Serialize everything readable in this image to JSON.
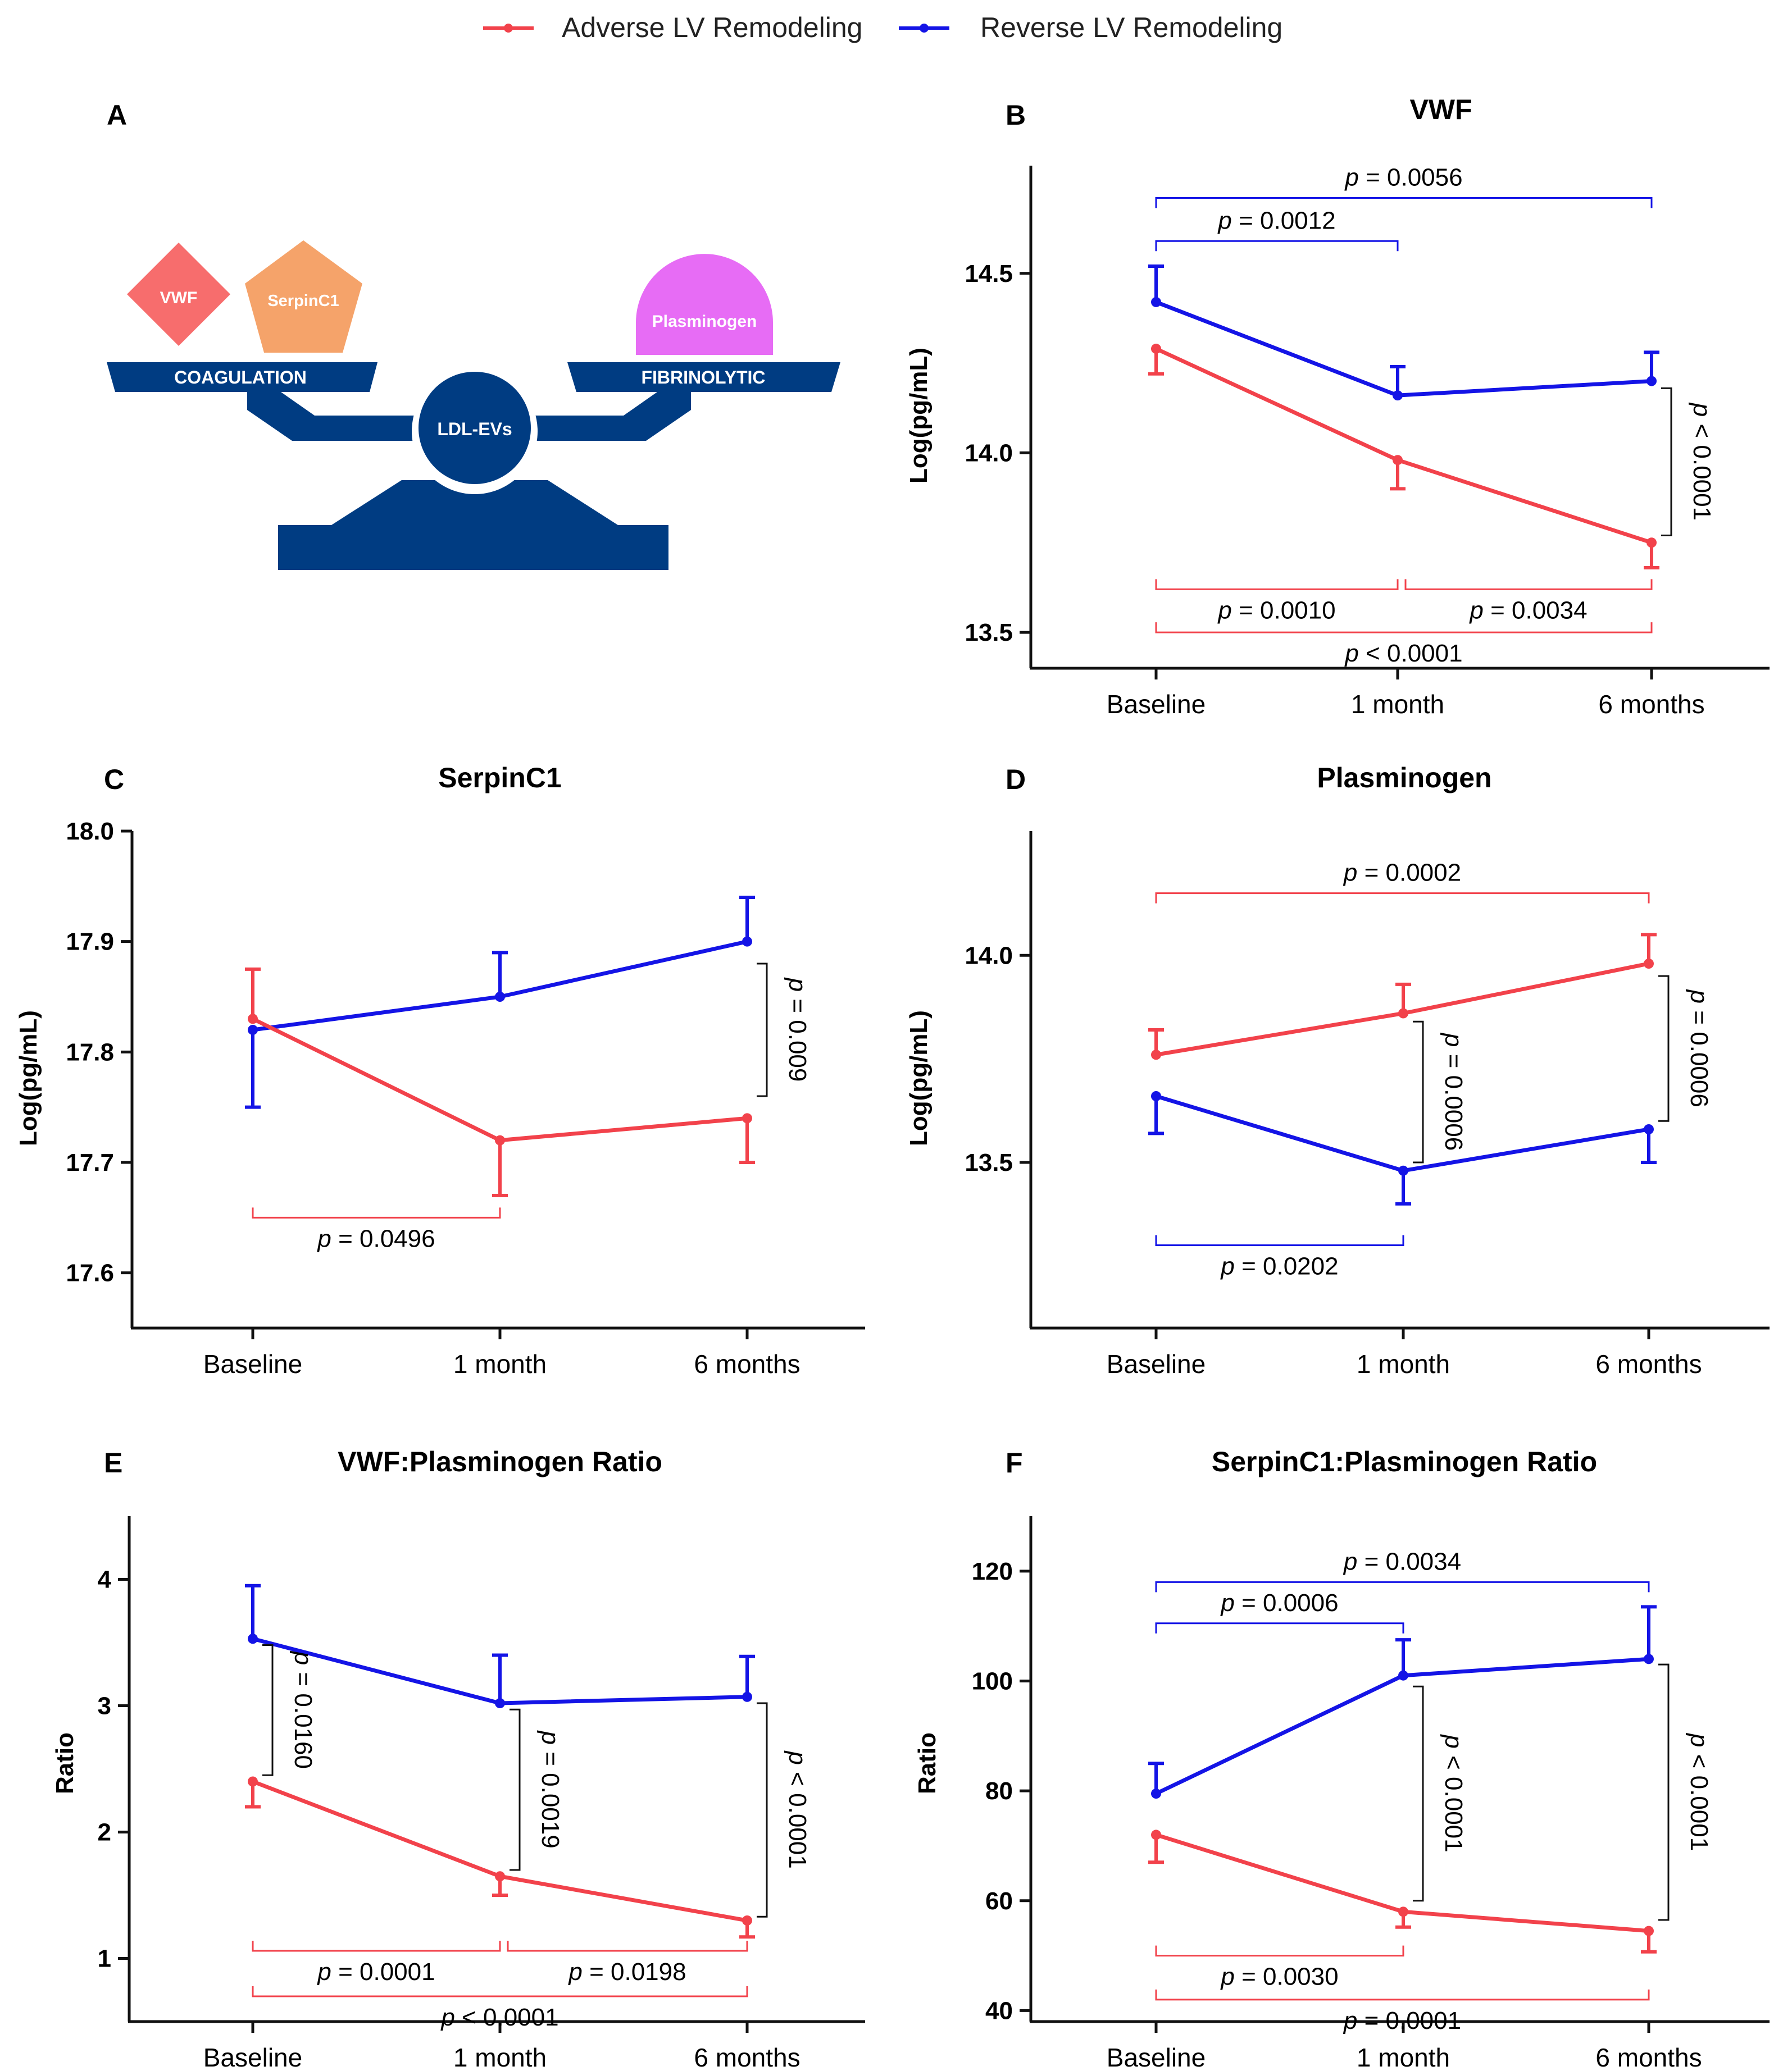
{
  "legend": {
    "adverse": "Adverse LV Remodeling",
    "reverse": "Reverse LV Remodeling",
    "adverse_color": "#f2424b",
    "reverse_color": "#1414e6"
  },
  "panel_a": {
    "letter": "A",
    "vwf_label": "VWF",
    "serpin_label": "SerpinC1",
    "plasminogen_label": "Plasminogen",
    "coag_label": "COAGULATION",
    "fibrino_label": "FIBRINOLYTIC",
    "hub_label": "LDL-EVs",
    "colors": {
      "vwf": "#f76d6d",
      "serpin": "#f5a36a",
      "plasminogen": "#e76cf5",
      "scale": "#003c82"
    }
  },
  "chart_data": [
    {
      "id": "B",
      "type": "line",
      "title": "VWF",
      "ylabel": "Log(pg/mL)",
      "categories": [
        "Baseline",
        "1 month",
        "6 months"
      ],
      "ylim": [
        13.4,
        14.8
      ],
      "yticks": [
        "13.5",
        "14.0",
        "14.5"
      ],
      "ytick_values": [
        13.5,
        14.0,
        14.5
      ],
      "series": [
        {
          "name": "Reverse LV Remodeling",
          "color": "#1414e6",
          "values": [
            14.42,
            14.16,
            14.2
          ],
          "err": [
            0.1,
            0.08,
            0.08
          ]
        },
        {
          "name": "Adverse LV Remodeling",
          "color": "#f2424b",
          "values": [
            14.29,
            13.98,
            13.75
          ],
          "err": [
            0.07,
            0.08,
            0.07
          ]
        }
      ],
      "brackets": [
        {
          "text": "p = 0.0056",
          "kind": "h",
          "series": 0,
          "from": 0,
          "to": 2,
          "y": 14.71,
          "side": "above"
        },
        {
          "text": "p = 0.0012",
          "kind": "h",
          "series": 0,
          "from": 0,
          "to": 1,
          "y": 14.59,
          "side": "above"
        },
        {
          "text": "p < 0.0001",
          "kind": "v",
          "at": 2,
          "y1": 14.18,
          "y2": 13.77
        },
        {
          "text": "p = 0.0010",
          "kind": "h",
          "series": 1,
          "from": 0,
          "to": 1,
          "y": 13.62,
          "side": "below"
        },
        {
          "text": "p = 0.0034",
          "kind": "h",
          "series": 1,
          "from": 1,
          "to": 2,
          "y": 13.62,
          "side": "below"
        },
        {
          "text": "p < 0.0001",
          "kind": "h",
          "series": 1,
          "from": 0,
          "to": 2,
          "y": 13.5,
          "side": "below"
        }
      ]
    },
    {
      "id": "C",
      "type": "line",
      "title": "SerpinC1",
      "ylabel": "Log(pg/mL)",
      "categories": [
        "Baseline",
        "1 month",
        "6 months"
      ],
      "ylim": [
        17.55,
        18.0
      ],
      "yticks": [
        "17.6",
        "17.7",
        "17.8",
        "17.9",
        "18.0"
      ],
      "ytick_values": [
        17.6,
        17.7,
        17.8,
        17.9,
        18.0
      ],
      "series": [
        {
          "name": "Reverse LV Remodeling",
          "color": "#1414e6",
          "values": [
            17.82,
            17.85,
            17.9
          ],
          "err": [
            0.07,
            0.04,
            0.04
          ]
        },
        {
          "name": "Adverse LV Remodeling",
          "color": "#f2424b",
          "values": [
            17.83,
            17.72,
            17.74
          ],
          "err": [
            0.045,
            0.05,
            0.04
          ]
        }
      ],
      "brackets": [
        {
          "text": "p = 0.009",
          "kind": "v",
          "at": 2,
          "y1": 17.88,
          "y2": 17.76
        },
        {
          "text": "p = 0.0496",
          "kind": "h",
          "series": 1,
          "from": 0,
          "to": 1,
          "y": 17.65,
          "side": "below"
        }
      ]
    },
    {
      "id": "D",
      "type": "line",
      "title": "Plasminogen",
      "ylabel": "Log(pg/mL)",
      "categories": [
        "Baseline",
        "1 month",
        "6 months"
      ],
      "ylim": [
        13.1,
        14.3
      ],
      "yticks": [
        "13.5",
        "14.0"
      ],
      "ytick_values": [
        13.5,
        14.0
      ],
      "series": [
        {
          "name": "Adverse LV Remodeling",
          "color": "#f2424b",
          "values": [
            13.76,
            13.86,
            13.98
          ],
          "err": [
            0.06,
            0.07,
            0.07
          ]
        },
        {
          "name": "Reverse LV Remodeling",
          "color": "#1414e6",
          "values": [
            13.66,
            13.48,
            13.58
          ],
          "err": [
            0.09,
            0.08,
            0.08
          ]
        }
      ],
      "brackets": [
        {
          "text": "p = 0.0002",
          "kind": "h",
          "series": 0,
          "from": 0,
          "to": 2,
          "y": 14.15,
          "side": "above"
        },
        {
          "text": "p = 0.0006",
          "kind": "v",
          "at": 1,
          "y1": 13.84,
          "y2": 13.5
        },
        {
          "text": "p = 0.0006",
          "kind": "v",
          "at": 2,
          "y1": 13.95,
          "y2": 13.6
        },
        {
          "text": "p = 0.0202",
          "kind": "h",
          "series": 1,
          "from": 0,
          "to": 1,
          "y": 13.3,
          "side": "below"
        }
      ]
    },
    {
      "id": "E",
      "type": "line",
      "title": "VWF:Plasminogen Ratio",
      "ylabel": "Ratio",
      "categories": [
        "Baseline",
        "1 month",
        "6 months"
      ],
      "ylim": [
        0.5,
        4.5
      ],
      "yticks": [
        "1",
        "2",
        "3",
        "4"
      ],
      "ytick_values": [
        1,
        2,
        3,
        4
      ],
      "series": [
        {
          "name": "Reverse LV Remodeling",
          "color": "#1414e6",
          "values": [
            3.53,
            3.02,
            3.07
          ],
          "err": [
            0.42,
            0.38,
            0.32
          ]
        },
        {
          "name": "Adverse LV Remodeling",
          "color": "#f2424b",
          "values": [
            2.4,
            1.65,
            1.3
          ],
          "err": [
            0.2,
            0.15,
            0.13
          ]
        }
      ],
      "brackets": [
        {
          "text": "p = 0.0160",
          "kind": "v",
          "at": 0,
          "y1": 3.48,
          "y2": 2.45
        },
        {
          "text": "p = 0.0019",
          "kind": "v",
          "at": 1,
          "y1": 2.97,
          "y2": 1.7
        },
        {
          "text": "p < 0.0001",
          "kind": "v",
          "at": 2,
          "y1": 3.02,
          "y2": 1.33
        },
        {
          "text": "p = 0.0001",
          "kind": "h",
          "series": 1,
          "from": 0,
          "to": 1,
          "y": 1.06,
          "side": "below"
        },
        {
          "text": "p = 0.0198",
          "kind": "h",
          "series": 1,
          "from": 1,
          "to": 2,
          "y": 1.06,
          "side": "below"
        },
        {
          "text": "p < 0.0001",
          "kind": "h",
          "series": 1,
          "from": 0,
          "to": 2,
          "y": 0.7,
          "side": "below"
        }
      ]
    },
    {
      "id": "F",
      "type": "line",
      "title": "SerpinC1:Plasminogen Ratio",
      "ylabel": "Ratio",
      "categories": [
        "Baseline",
        "1 month",
        "6 months"
      ],
      "ylim": [
        38,
        130
      ],
      "yticks": [
        "40",
        "60",
        "80",
        "100",
        "120"
      ],
      "ytick_values": [
        40,
        60,
        80,
        100,
        120
      ],
      "series": [
        {
          "name": "Reverse LV Remodeling",
          "color": "#1414e6",
          "values": [
            79.5,
            101,
            104
          ],
          "err": [
            5.5,
            6.5,
            9.5
          ]
        },
        {
          "name": "Adverse LV Remodeling",
          "color": "#f2424b",
          "values": [
            72,
            58,
            54.5
          ],
          "err": [
            5,
            2.8,
            3.8
          ]
        }
      ],
      "brackets": [
        {
          "text": "p = 0.0034",
          "kind": "h",
          "series": 0,
          "from": 0,
          "to": 2,
          "y": 118,
          "side": "above"
        },
        {
          "text": "p = 0.0006",
          "kind": "h",
          "series": 0,
          "from": 0,
          "to": 1,
          "y": 110.5,
          "side": "above"
        },
        {
          "text": "p < 0.0001",
          "kind": "v",
          "at": 1,
          "y1": 99,
          "y2": 60
        },
        {
          "text": "p < 0.0001",
          "kind": "v",
          "at": 2,
          "y1": 103,
          "y2": 56.5
        },
        {
          "text": "p = 0.0030",
          "kind": "h",
          "series": 1,
          "from": 0,
          "to": 1,
          "y": 50,
          "side": "below"
        },
        {
          "text": "p = 0.0001",
          "kind": "h",
          "series": 1,
          "from": 0,
          "to": 2,
          "y": 42,
          "side": "below"
        }
      ]
    }
  ]
}
